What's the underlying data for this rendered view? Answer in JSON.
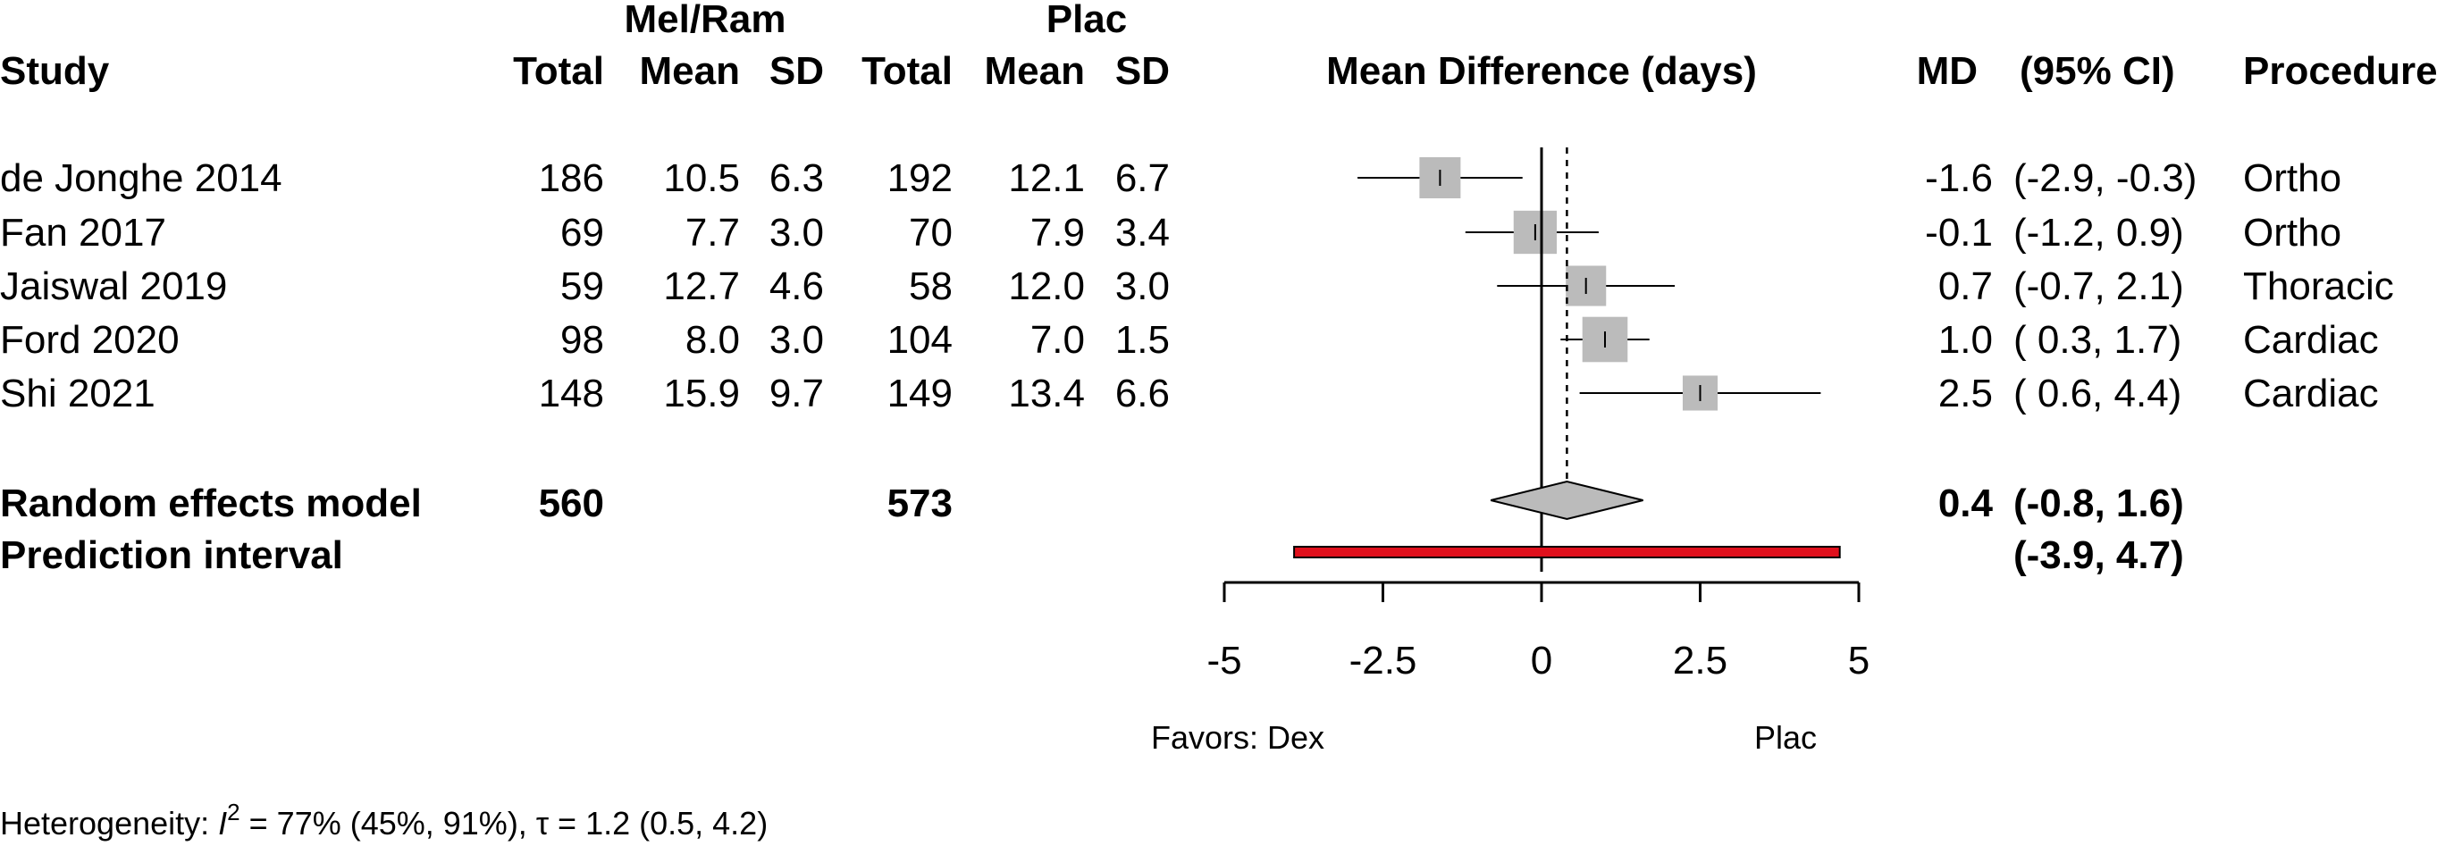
{
  "chart_data": {
    "type": "forest",
    "headers": {
      "group1": "Mel/Ram",
      "group2": "Plac",
      "study": "Study",
      "total1": "Total",
      "mean1": "Mean",
      "sd1": "SD",
      "total2": "Total",
      "mean2": "Mean",
      "sd2": "SD",
      "plot": "Mean Difference (days)",
      "md": "MD",
      "ci": "(95% CI)",
      "procedure": "Procedure"
    },
    "studies": [
      {
        "study": "de Jonghe 2014",
        "total1": "186",
        "mean1": "10.5",
        "sd1": "6.3",
        "total2": "192",
        "mean2": "12.1",
        "sd2": "6.7",
        "md": -1.6,
        "lower": -2.9,
        "upper": -0.3,
        "md_text": "-1.6",
        "ci_text": "(-2.9, -0.3)",
        "procedure": "Ortho",
        "weight": 1.0
      },
      {
        "study": "Fan 2017",
        "total1": "69",
        "mean1": "7.7",
        "sd1": "3.0",
        "total2": "70",
        "mean2": "7.9",
        "sd2": "3.4",
        "md": -0.1,
        "lower": -1.2,
        "upper": 0.9,
        "md_text": "-0.1",
        "ci_text": "(-1.2,  0.9)",
        "procedure": "Ortho",
        "weight": 1.05
      },
      {
        "study": "Jaiswal 2019",
        "total1": "59",
        "mean1": "12.7",
        "sd1": "4.6",
        "total2": "58",
        "mean2": "12.0",
        "sd2": "3.0",
        "md": 0.7,
        "lower": -0.7,
        "upper": 2.1,
        "md_text": "0.7",
        "ci_text": "(-0.7,  2.1)",
        "procedure": "Thoracic",
        "weight": 0.98
      },
      {
        "study": "Ford 2020",
        "total1": "98",
        "mean1": "8.0",
        "sd1": "3.0",
        "total2": "104",
        "mean2": "7.0",
        "sd2": "1.5",
        "md": 1.0,
        "lower": 0.3,
        "upper": 1.7,
        "md_text": "1.0",
        "ci_text": "( 0.3,  1.7)",
        "procedure": "Cardiac",
        "weight": 1.1
      },
      {
        "study": "Shi 2021",
        "total1": "148",
        "mean1": "15.9",
        "sd1": "9.7",
        "total2": "149",
        "mean2": "13.4",
        "sd2": "6.6",
        "md": 2.5,
        "lower": 0.6,
        "upper": 4.4,
        "md_text": "2.5",
        "ci_text": "( 0.6,  4.4)",
        "procedure": "Cardiac",
        "weight": 0.85
      }
    ],
    "summary": {
      "label": "Random effects model",
      "total1": "560",
      "total2": "573",
      "md": 0.4,
      "lower": -0.8,
      "upper": 1.6,
      "md_text": "0.4",
      "ci_text": "(-0.8,  1.6)"
    },
    "prediction": {
      "label": "Prediction interval",
      "lower": -3.9,
      "upper": 4.7,
      "ci_text": "(-3.9,  4.7)",
      "color": "#e0101c"
    },
    "xaxis": {
      "range": [
        -5,
        5
      ],
      "ticks": [
        -5,
        -2.5,
        0,
        2.5,
        5
      ],
      "tick_labels": [
        "-5",
        "-2.5",
        "0",
        "2.5",
        "5"
      ],
      "null_line": 0,
      "summary_line": 0.4
    },
    "favors": {
      "left": "Favors: Dex",
      "right": "Plac"
    },
    "heterogeneity": {
      "prefix": "Heterogeneity: ",
      "i2_symbol": "I",
      "i2_sup": "2",
      "i2_text": " = 77% (45%, 91%), ",
      "tau_symbol": "τ",
      "tau_text": " = 1.2 (0.5, 4.2)"
    },
    "colors": {
      "box": "#bbbbbb",
      "diamond": "#bbbbbb",
      "line": "#000000"
    }
  }
}
